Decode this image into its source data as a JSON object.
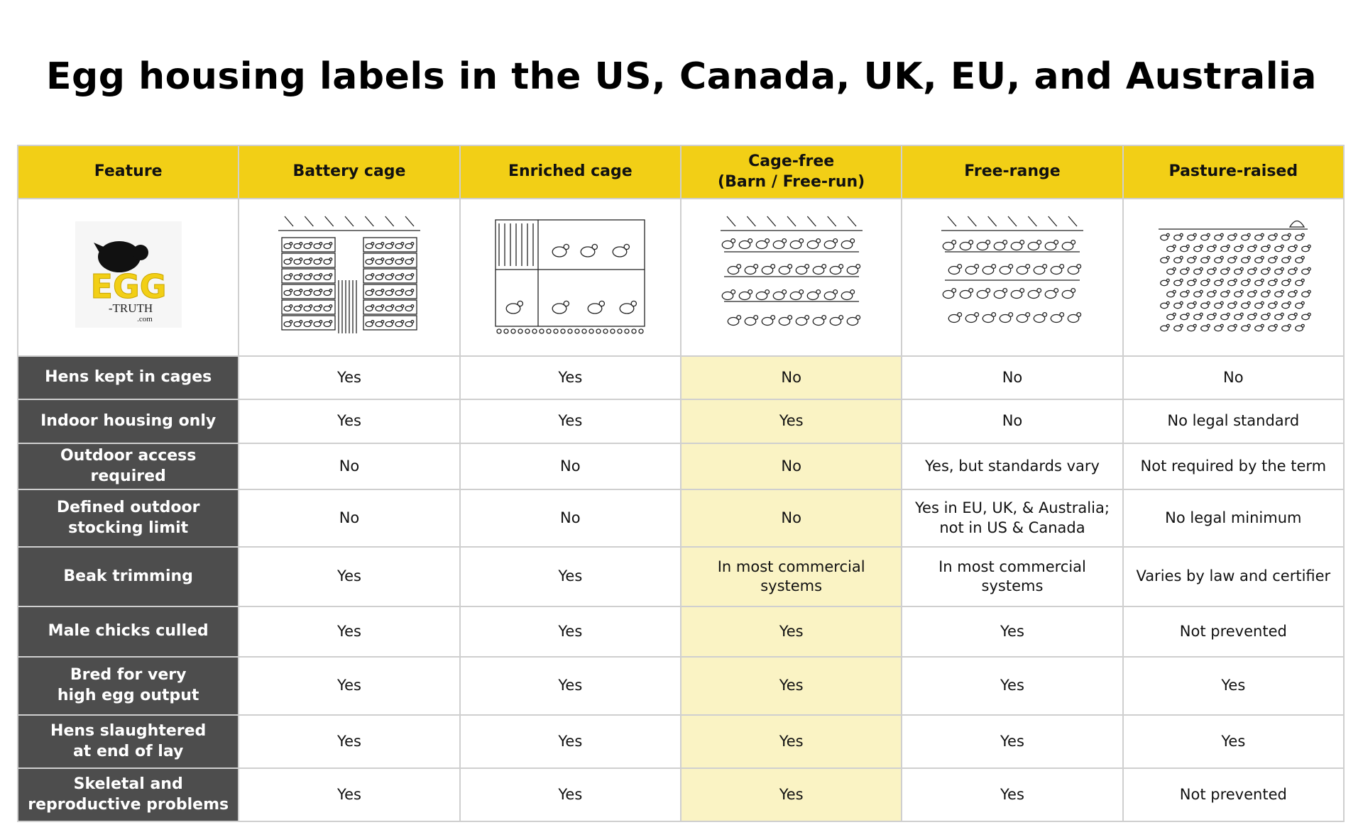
{
  "title": "Egg housing labels in the US, Canada, UK, EU, and Australia",
  "table": {
    "header": [
      "Feature",
      "Battery cage",
      "Enriched cage",
      "Cage-free\n(Barn / Free-run)",
      "Free-range",
      "Pasture-raised"
    ],
    "logo": {
      "name": "EGG",
      "sub": "-TRUTH",
      "domain": ".com"
    },
    "rows": [
      [
        "Hens kept in cages",
        "Yes",
        "Yes",
        "No",
        "No",
        "No"
      ],
      [
        "Indoor housing only",
        "Yes",
        "Yes",
        "Yes",
        "No",
        "No legal standard"
      ],
      [
        "Outdoor access required",
        "No",
        "No",
        "No",
        "Yes, but standards vary",
        "Not required by the term"
      ],
      [
        "Defined outdoor\nstocking limit",
        "No",
        "No",
        "No",
        "Yes in EU, UK, & Australia;\nnot in US & Canada",
        "No legal minimum"
      ],
      [
        "Beak trimming",
        "Yes",
        "Yes",
        "In most commercial systems",
        "In most commercial systems",
        "Varies by law and certifier"
      ],
      [
        "Male chicks culled",
        "Yes",
        "Yes",
        "Yes",
        "Yes",
        "Not prevented"
      ],
      [
        "Bred for very\nhigh egg output",
        "Yes",
        "Yes",
        "Yes",
        "Yes",
        "Yes"
      ],
      [
        "Hens slaughtered\nat end of lay",
        "Yes",
        "Yes",
        "Yes",
        "Yes",
        "Yes"
      ],
      [
        "Skeletal and\nreproductive problems",
        "Yes",
        "Yes",
        "Yes",
        "Yes",
        "Not prevented"
      ]
    ]
  }
}
